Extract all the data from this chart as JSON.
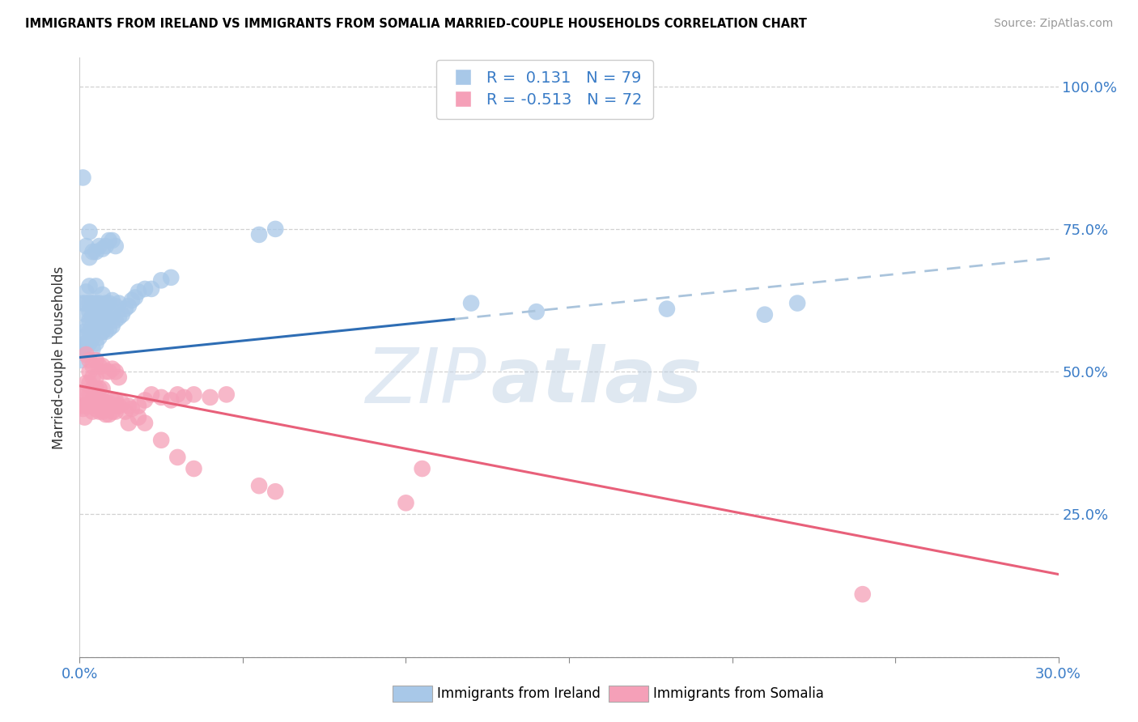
{
  "title": "IMMIGRANTS FROM IRELAND VS IMMIGRANTS FROM SOMALIA MARRIED-COUPLE HOUSEHOLDS CORRELATION CHART",
  "source": "Source: ZipAtlas.com",
  "ylabel": "Married-couple Households",
  "yticks": [
    0.0,
    0.25,
    0.5,
    0.75,
    1.0
  ],
  "ytick_labels": [
    "",
    "25.0%",
    "50.0%",
    "75.0%",
    "100.0%"
  ],
  "legend_ireland_r": "0.131",
  "legend_ireland_n": "79",
  "legend_somalia_r": "-0.513",
  "legend_somalia_n": "72",
  "ireland_color": "#a8c8e8",
  "somalia_color": "#f5a0b8",
  "ireland_line_color": "#2e6db4",
  "ireland_dashed_color": "#aac4dc",
  "somalia_line_color": "#e8607a",
  "watermark_zip": "ZIP",
  "watermark_atlas": "atlas",
  "ireland_scatter_x": [
    0.0005,
    0.0008,
    0.001,
    0.001,
    0.001,
    0.0015,
    0.0015,
    0.002,
    0.002,
    0.002,
    0.002,
    0.002,
    0.003,
    0.003,
    0.003,
    0.003,
    0.003,
    0.003,
    0.004,
    0.004,
    0.004,
    0.004,
    0.004,
    0.005,
    0.005,
    0.005,
    0.005,
    0.005,
    0.006,
    0.006,
    0.006,
    0.006,
    0.007,
    0.007,
    0.007,
    0.007,
    0.008,
    0.008,
    0.008,
    0.009,
    0.009,
    0.009,
    0.01,
    0.01,
    0.01,
    0.011,
    0.011,
    0.012,
    0.012,
    0.013,
    0.014,
    0.015,
    0.016,
    0.017,
    0.018,
    0.02,
    0.022,
    0.025,
    0.028,
    0.001,
    0.002,
    0.003,
    0.003,
    0.004,
    0.005,
    0.006,
    0.007,
    0.008,
    0.009,
    0.01,
    0.011,
    0.055,
    0.06,
    0.12,
    0.14,
    0.18,
    0.21,
    0.22
  ],
  "ireland_scatter_y": [
    0.52,
    0.535,
    0.54,
    0.56,
    0.62,
    0.545,
    0.57,
    0.55,
    0.58,
    0.6,
    0.62,
    0.64,
    0.55,
    0.57,
    0.59,
    0.605,
    0.62,
    0.65,
    0.54,
    0.56,
    0.58,
    0.6,
    0.62,
    0.55,
    0.575,
    0.6,
    0.62,
    0.65,
    0.56,
    0.58,
    0.6,
    0.62,
    0.57,
    0.595,
    0.61,
    0.635,
    0.57,
    0.595,
    0.62,
    0.575,
    0.595,
    0.62,
    0.58,
    0.6,
    0.625,
    0.59,
    0.615,
    0.595,
    0.62,
    0.6,
    0.61,
    0.615,
    0.625,
    0.63,
    0.64,
    0.645,
    0.645,
    0.66,
    0.665,
    0.84,
    0.72,
    0.745,
    0.7,
    0.71,
    0.71,
    0.72,
    0.715,
    0.72,
    0.73,
    0.73,
    0.72,
    0.74,
    0.75,
    0.62,
    0.605,
    0.61,
    0.6,
    0.62
  ],
  "somalia_scatter_x": [
    0.0005,
    0.001,
    0.001,
    0.0015,
    0.002,
    0.002,
    0.002,
    0.003,
    0.003,
    0.003,
    0.003,
    0.004,
    0.004,
    0.004,
    0.004,
    0.005,
    0.005,
    0.005,
    0.005,
    0.006,
    0.006,
    0.006,
    0.007,
    0.007,
    0.007,
    0.008,
    0.008,
    0.009,
    0.009,
    0.01,
    0.01,
    0.011,
    0.011,
    0.012,
    0.013,
    0.014,
    0.015,
    0.016,
    0.018,
    0.02,
    0.022,
    0.025,
    0.028,
    0.03,
    0.032,
    0.035,
    0.04,
    0.045,
    0.002,
    0.003,
    0.004,
    0.005,
    0.006,
    0.007,
    0.008,
    0.009,
    0.01,
    0.011,
    0.012,
    0.015,
    0.018,
    0.02,
    0.025,
    0.03,
    0.035,
    0.055,
    0.06,
    0.1,
    0.105,
    0.24
  ],
  "somalia_scatter_y": [
    0.44,
    0.435,
    0.46,
    0.42,
    0.46,
    0.44,
    0.48,
    0.44,
    0.46,
    0.48,
    0.5,
    0.43,
    0.45,
    0.47,
    0.49,
    0.435,
    0.455,
    0.47,
    0.49,
    0.43,
    0.45,
    0.47,
    0.43,
    0.45,
    0.47,
    0.425,
    0.445,
    0.425,
    0.445,
    0.43,
    0.45,
    0.43,
    0.45,
    0.44,
    0.445,
    0.43,
    0.44,
    0.435,
    0.44,
    0.45,
    0.46,
    0.455,
    0.45,
    0.46,
    0.455,
    0.46,
    0.455,
    0.46,
    0.53,
    0.52,
    0.51,
    0.52,
    0.51,
    0.51,
    0.5,
    0.5,
    0.505,
    0.5,
    0.49,
    0.41,
    0.42,
    0.41,
    0.38,
    0.35,
    0.33,
    0.3,
    0.29,
    0.27,
    0.33,
    0.11
  ],
  "ireland_trend_x0": 0.0,
  "ireland_trend_x1": 0.3,
  "ireland_trend_y0": 0.525,
  "ireland_trend_y1": 0.7,
  "ireland_trend_solid_end": 0.115,
  "somalia_trend_x0": 0.0,
  "somalia_trend_x1": 0.3,
  "somalia_trend_y0": 0.475,
  "somalia_trend_y1": 0.145,
  "xlim": [
    0.0,
    0.3
  ],
  "ylim": [
    0.0,
    1.05
  ],
  "xtick_positions": [
    0.0,
    0.05,
    0.1,
    0.15,
    0.2,
    0.25,
    0.3
  ]
}
